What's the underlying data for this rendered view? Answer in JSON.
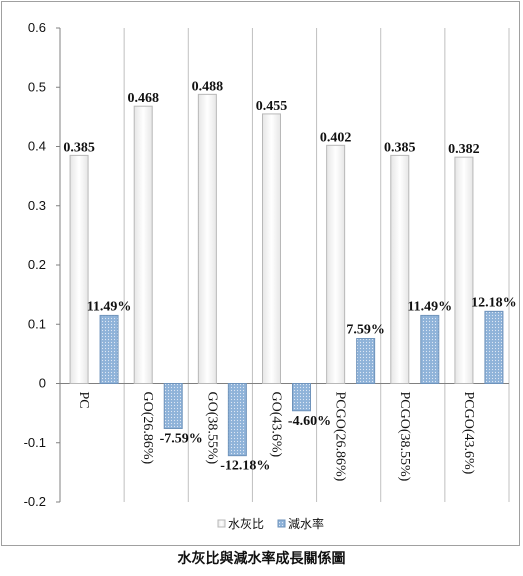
{
  "caption": "水灰比與減水率成長關係圖",
  "colors": {
    "series1_fill": "#f4f4f4",
    "series1_stroke": "#b8b8b8",
    "series2_fill": "#8fb3d9",
    "series2_stroke": "#6f93bb",
    "gridline": "#c0c0c0"
  },
  "chart_data": {
    "type": "bar",
    "title": "",
    "xlabel": "",
    "ylabel": "",
    "ylim": [
      -0.2,
      0.6
    ],
    "yticks": [
      "-0.2",
      "-0.1",
      "0",
      "0.1",
      "0.2",
      "0.3",
      "0.4",
      "0.5",
      "0.6"
    ],
    "grid": "vertical category gridlines",
    "legend_position": "bottom",
    "categories": [
      "PC",
      "GO(26.86%)",
      "GO(38.55%)",
      "GO(43.6%)",
      "PCGO(26.86%)",
      "PCGO(38.55%)",
      "PCGO(43.6%)"
    ],
    "series": [
      {
        "name": "水灰比",
        "values": [
          0.385,
          0.468,
          0.488,
          0.455,
          0.402,
          0.385,
          0.382
        ],
        "labels": [
          "0.385",
          "0.468",
          "0.488",
          "0.455",
          "0.402",
          "0.385",
          "0.382"
        ]
      },
      {
        "name": "減水率",
        "values": [
          0.1149,
          -0.0759,
          -0.1218,
          -0.046,
          0.0759,
          0.1149,
          0.1218
        ],
        "labels": [
          "11.49%",
          "-7.59%",
          "-12.18%",
          "-4.60%",
          "7.59%",
          "11.49%",
          "12.18%"
        ]
      }
    ]
  }
}
